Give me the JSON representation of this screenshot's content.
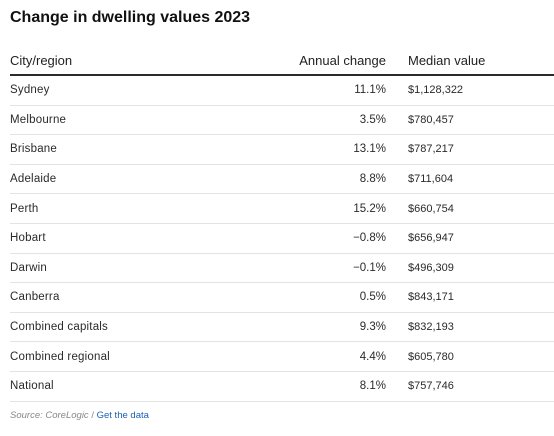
{
  "title": "Change in dwelling values 2023",
  "table": {
    "headers": {
      "city": "City/region",
      "change": "Annual change",
      "value": "Median value"
    },
    "rows": [
      {
        "city": "Sydney",
        "change": "11.1%",
        "value": "$1,128,322"
      },
      {
        "city": "Melbourne",
        "change": "3.5%",
        "value": "$780,457"
      },
      {
        "city": "Brisbane",
        "change": "13.1%",
        "value": "$787,217"
      },
      {
        "city": "Adelaide",
        "change": "8.8%",
        "value": "$711,604"
      },
      {
        "city": "Perth",
        "change": "15.2%",
        "value": "$660,754"
      },
      {
        "city": "Hobart",
        "change": "−0.8%",
        "value": "$656,947"
      },
      {
        "city": "Darwin",
        "change": "−0.1%",
        "value": "$496,309"
      },
      {
        "city": "Canberra",
        "change": "0.5%",
        "value": "$843,171"
      },
      {
        "city": "Combined capitals",
        "change": "9.3%",
        "value": "$832,193"
      },
      {
        "city": "Combined regional",
        "change": "4.4%",
        "value": "$605,780"
      },
      {
        "city": "National",
        "change": "8.1%",
        "value": "$757,746"
      }
    ]
  },
  "source": {
    "label": "Source: CoreLogic",
    "separator": " / ",
    "link": "Get the data"
  }
}
